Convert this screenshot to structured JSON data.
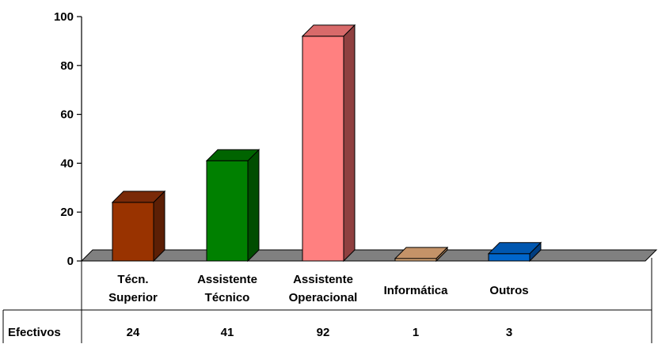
{
  "chart_data": {
    "type": "bar",
    "style": "3d-column",
    "categories": [
      [
        "Técn.",
        "Superior"
      ],
      [
        "Assistente",
        "Técnico"
      ],
      [
        "Assistente",
        "Operacional"
      ],
      [
        "Informática"
      ],
      [
        "Outros"
      ]
    ],
    "series": [
      {
        "name": "Efectivos",
        "values": [
          24,
          41,
          92,
          1,
          3
        ]
      }
    ],
    "ylim": [
      0,
      100
    ],
    "yticks": [
      0,
      20,
      40,
      60,
      80,
      100
    ],
    "grid": false,
    "data_table": true,
    "legend": "none",
    "colors": {
      "bars": [
        {
          "front": "#993300",
          "top": "#7a2a08",
          "side": "#5c1f05"
        },
        {
          "front": "#008000",
          "top": "#006400",
          "side": "#004d00"
        },
        {
          "front": "#ff8080",
          "top": "#d86a6a",
          "side": "#8f4040"
        },
        {
          "front": "#d9a877",
          "top": "#c49368",
          "side": "#9c744f"
        },
        {
          "front": "#0066cc",
          "top": "#0057b0",
          "side": "#003d80"
        }
      ],
      "floor": "#808080"
    }
  }
}
